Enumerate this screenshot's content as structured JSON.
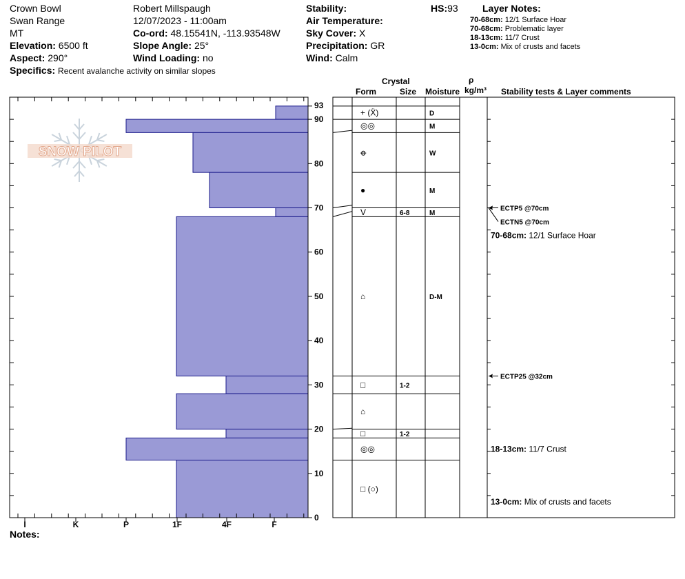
{
  "header": {
    "location": "Crown Bowl",
    "range": "Swan Range",
    "state": "MT",
    "elevation_label": "Elevation:",
    "elevation_value": "6500 ft",
    "aspect_label": "Aspect:",
    "aspect_value": "290°",
    "specifics_label": "Specifics:",
    "specifics_value": "Recent avalanche activity on similar slopes",
    "observer": "Robert Millspaugh",
    "datetime": "12/07/2023 - 11:00am",
    "coord_label": "Co-ord:",
    "coord_value": "48.15541N, -113.93548W",
    "slope_label": "Slope Angle:",
    "slope_value": "25°",
    "wind_loading_label": "Wind Loading:",
    "wind_loading_value": "no",
    "stability_label": "Stability:",
    "stability_value": "",
    "air_temp_label": "Air Temperature:",
    "air_temp_value": "",
    "sky_label": "Sky Cover:",
    "sky_value": "X",
    "precip_label": "Precipitation:",
    "precip_value": "GR",
    "wind_label": "Wind:",
    "wind_value": "Calm",
    "hs_label": "HS:",
    "hs_value": "93"
  },
  "layer_notes": {
    "title": "Layer Notes:",
    "items": [
      {
        "range": "70-68cm:",
        "text": "12/1 Surface Hoar"
      },
      {
        "range": "70-68cm:",
        "text": "Problematic layer"
      },
      {
        "range": "18-13cm:",
        "text": "11/7 Crust"
      },
      {
        "range": "13-0cm:",
        "text": "Mix of crusts and facets"
      }
    ]
  },
  "columns": {
    "crystal": "Crystal",
    "form": "Form",
    "size": "Size",
    "moisture": "Moisture",
    "rho": "ρ",
    "density_unit": "kg/m³",
    "comments": "Stability tests & Layer comments"
  },
  "logo_text": "SNOW PILOT",
  "notes_label": "Notes:",
  "chart_data": {
    "type": "bar",
    "orientation": "horizontal",
    "y_axis": {
      "range": [
        0,
        93
      ],
      "ticks": [
        0,
        10,
        20,
        30,
        40,
        50,
        60,
        70,
        80,
        90,
        93
      ]
    },
    "hardness_scale": [
      "I",
      "K",
      "P",
      "1F",
      "4F",
      "F"
    ],
    "hardness_scale_note": "F is least hard (short bar), I is hardest (long bar)",
    "layers": [
      {
        "top": 93,
        "bottom": 90,
        "hardness": "F-"
      },
      {
        "top": 90,
        "bottom": 87,
        "hardness": "P"
      },
      {
        "top": 87,
        "bottom": 78,
        "hardness": "4F+"
      },
      {
        "top": 78,
        "bottom": 70,
        "hardness": "4F"
      },
      {
        "top": 70,
        "bottom": 68,
        "hardness": "F-"
      },
      {
        "top": 68,
        "bottom": 32,
        "hardness": "1F"
      },
      {
        "top": 32,
        "bottom": 28,
        "hardness": "4F-"
      },
      {
        "top": 28,
        "bottom": 20,
        "hardness": "1F"
      },
      {
        "top": 20,
        "bottom": 18,
        "hardness": "4F-"
      },
      {
        "top": 18,
        "bottom": 13,
        "hardness": "P"
      },
      {
        "top": 13,
        "bottom": 0,
        "hardness": "1F"
      }
    ],
    "table_rows": [
      {
        "top": 93,
        "bottom": 90,
        "form": "+ (Ẍ)",
        "size": "",
        "moisture": "D"
      },
      {
        "top": 90,
        "bottom": 87,
        "form": "◎◎",
        "size": "",
        "moisture": "M"
      },
      {
        "top": 87,
        "bottom": 78,
        "form": "ꝋ",
        "size": "",
        "moisture": "W"
      },
      {
        "top": 78,
        "bottom": 70,
        "form": "●",
        "size": "",
        "moisture": "M"
      },
      {
        "top": 70,
        "bottom": 68,
        "form": "V",
        "size": "6-8",
        "moisture": "M"
      },
      {
        "top": 68,
        "bottom": 32,
        "form": "⌂",
        "size": "",
        "moisture": "D-M"
      },
      {
        "top": 32,
        "bottom": 28,
        "form": "□",
        "size": "1-2",
        "moisture": ""
      },
      {
        "top": 28,
        "bottom": 20,
        "form": "⌂",
        "size": "",
        "moisture": ""
      },
      {
        "top": 20,
        "bottom": 18,
        "form": "□",
        "size": "1-2",
        "moisture": ""
      },
      {
        "top": 18,
        "bottom": 13,
        "form": "◎◎",
        "size": "",
        "moisture": ""
      },
      {
        "top": 13,
        "bottom": 0,
        "form": "□ (○)",
        "size": "",
        "moisture": ""
      }
    ],
    "stability_tests": [
      {
        "text": "ECTP5 @70cm"
      },
      {
        "text": "ECTN5 @70cm"
      },
      {
        "text": "ECTP25 @32cm"
      }
    ],
    "layer_comments": [
      {
        "range": "70-68cm:",
        "text": "12/1 Surface Hoar"
      },
      {
        "range": "18-13cm:",
        "text": "11/7 Crust"
      },
      {
        "range": "13-0cm:",
        "text": "Mix of crusts and facets"
      }
    ]
  }
}
